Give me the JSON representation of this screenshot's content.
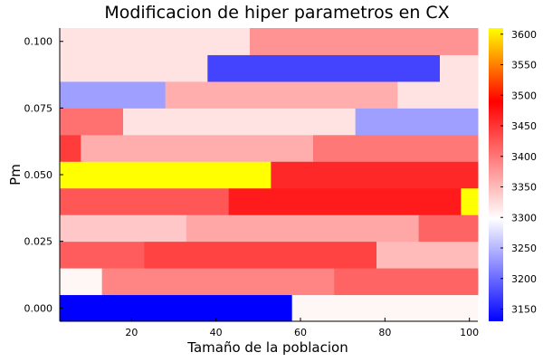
{
  "chart_data": {
    "type": "heatmap",
    "title": "Modificacion de hiper parametros en CX",
    "xlabel": "Tamaño de la poblacion",
    "ylabel": "Pm",
    "xlim": [
      3,
      102
    ],
    "ylim": [
      -0.005,
      0.105
    ],
    "x_ticks": [
      20,
      40,
      60,
      80,
      100
    ],
    "x_tick_labels": [
      "20",
      "40",
      "60",
      "80",
      "100"
    ],
    "y_ticks": [
      0.0,
      0.025,
      0.05,
      0.075,
      0.1
    ],
    "y_tick_labels": [
      "0.000",
      "0.025",
      "0.050",
      "0.075",
      "0.100"
    ],
    "colorbar": {
      "min": 3130,
      "max": 3610,
      "ticks": [
        3150,
        3200,
        3250,
        3300,
        3350,
        3400,
        3450,
        3500,
        3550,
        3600
      ],
      "tick_labels": [
        "3150",
        "3200",
        "3250",
        "3300",
        "3350",
        "3400",
        "3450",
        "3500",
        "3550",
        "3600"
      ],
      "colormap": [
        {
          "pos": 0.0,
          "color": "#0000ff"
        },
        {
          "pos": 0.35,
          "color": "#ffffff"
        },
        {
          "pos": 0.75,
          "color": "#ff0000"
        },
        {
          "pos": 1.0,
          "color": "#ffff00"
        }
      ]
    },
    "grid": false,
    "rows": [
      {
        "pm": 0.0,
        "segments": [
          {
            "x0": 3,
            "x1": 58,
            "value": 3130
          },
          {
            "x0": 58,
            "x1": 102,
            "value": 3305
          }
        ]
      },
      {
        "pm": 0.01,
        "segments": [
          {
            "x0": 3,
            "x1": 13,
            "value": 3305
          },
          {
            "x0": 13,
            "x1": 68,
            "value": 3390
          },
          {
            "x0": 68,
            "x1": 102,
            "value": 3415
          }
        ]
      },
      {
        "pm": 0.02,
        "segments": [
          {
            "x0": 3,
            "x1": 23,
            "value": 3420
          },
          {
            "x0": 23,
            "x1": 78,
            "value": 3440
          },
          {
            "x0": 78,
            "x1": 102,
            "value": 3350
          }
        ]
      },
      {
        "pm": 0.03,
        "segments": [
          {
            "x0": 3,
            "x1": 33,
            "value": 3340
          },
          {
            "x0": 33,
            "x1": 88,
            "value": 3365
          },
          {
            "x0": 88,
            "x1": 102,
            "value": 3415
          }
        ]
      },
      {
        "pm": 0.04,
        "segments": [
          {
            "x0": 3,
            "x1": 43,
            "value": 3425
          },
          {
            "x0": 43,
            "x1": 98,
            "value": 3470
          },
          {
            "x0": 98,
            "x1": 102,
            "value": 3610
          }
        ]
      },
      {
        "pm": 0.05,
        "segments": [
          {
            "x0": 3,
            "x1": 53,
            "value": 3610
          },
          {
            "x0": 53,
            "x1": 102,
            "value": 3460
          }
        ]
      },
      {
        "pm": 0.06,
        "segments": [
          {
            "x0": 3,
            "x1": 8,
            "value": 3445
          },
          {
            "x0": 8,
            "x1": 63,
            "value": 3360
          },
          {
            "x0": 63,
            "x1": 102,
            "value": 3400
          }
        ]
      },
      {
        "pm": 0.07,
        "segments": [
          {
            "x0": 3,
            "x1": 18,
            "value": 3405
          },
          {
            "x0": 18,
            "x1": 73,
            "value": 3320
          },
          {
            "x0": 73,
            "x1": 102,
            "value": 3235
          }
        ]
      },
      {
        "pm": 0.08,
        "segments": [
          {
            "x0": 3,
            "x1": 28,
            "value": 3235
          },
          {
            "x0": 28,
            "x1": 83,
            "value": 3360
          },
          {
            "x0": 83,
            "x1": 102,
            "value": 3320
          }
        ]
      },
      {
        "pm": 0.09,
        "segments": [
          {
            "x0": 3,
            "x1": 38,
            "value": 3320
          },
          {
            "x0": 38,
            "x1": 93,
            "value": 3175
          },
          {
            "x0": 93,
            "x1": 102,
            "value": 3320
          }
        ]
      },
      {
        "pm": 0.1,
        "segments": [
          {
            "x0": 3,
            "x1": 48,
            "value": 3320
          },
          {
            "x0": 48,
            "x1": 102,
            "value": 3380
          }
        ]
      }
    ]
  }
}
